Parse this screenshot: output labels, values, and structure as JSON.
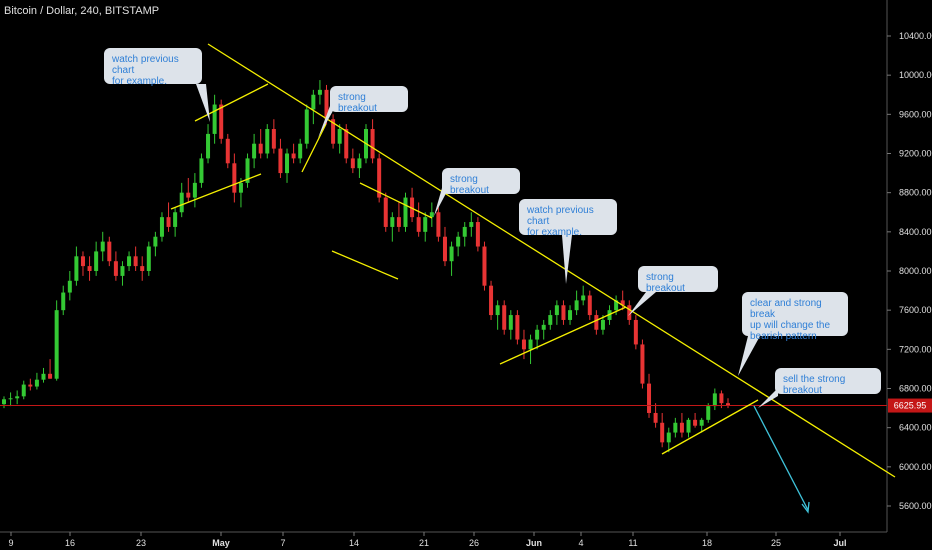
{
  "header": {
    "title": "Bitcoin / Dollar, 240, BITSTAMP"
  },
  "colors": {
    "background": "#000000",
    "up": "#34c934",
    "down": "#e83434",
    "trendline": "#f5f000",
    "priceline": "#c41717",
    "arrow": "#3fc2d9",
    "axis_text": "#e0e0e0",
    "callout_bg": "#dde3ea",
    "callout_text": "#2f7fd6"
  },
  "callouts": [
    {
      "text": "watch previous chart\nfor example."
    },
    {
      "text": "strong breakout"
    },
    {
      "text": "strong breakout"
    },
    {
      "text": "watch previous chart\nfor example."
    },
    {
      "text": "strong breakout"
    },
    {
      "text": "clear and strong break\nup will change the\nbearish pattern"
    },
    {
      "text": "sell the strong breakout"
    }
  ],
  "chart_data": {
    "type": "candlestick",
    "y_axis": {
      "ticks": [
        5600,
        6000,
        6400,
        6800,
        7200,
        7600,
        8000,
        8400,
        8800,
        9200,
        9600,
        10000,
        10400
      ],
      "labels": [
        "5600.00",
        "6000.00",
        "6400.00",
        "6800.00",
        "7200.00",
        "7600.00",
        "8000.00",
        "8400.00",
        "8800.00",
        "9200.00",
        "9600.00",
        "10000.00",
        "10400.00"
      ],
      "range": [
        5400,
        10700
      ]
    },
    "x_axis": {
      "labels": [
        "9",
        "16",
        "23",
        "May",
        "7",
        "14",
        "21",
        "26",
        "Jun",
        "4",
        "11",
        "18",
        "25",
        "Jul"
      ]
    },
    "last_price": 6625.95,
    "last_price_label": "6625.95",
    "trendlines": [
      {
        "from": [
          "Apr 30",
          10550
        ],
        "to": [
          "Jul 2",
          5880
        ],
        "role": "main descending resistance"
      },
      {
        "from": [
          "Apr 24",
          8670
        ],
        "to": [
          "May 3",
          8960
        ],
        "role": "rising wedge support"
      },
      {
        "from": [
          "Apr 28",
          9570
        ],
        "to": [
          "May 5",
          9960
        ],
        "role": "rising wedge resistance"
      },
      {
        "from": [
          "May 7",
          8990
        ],
        "to": [
          "May 10",
          9540
        ],
        "role": "breakout"
      },
      {
        "from": [
          "May 13",
          8830
        ],
        "to": [
          "May 21",
          8560
        ],
        "role": "falling channel top"
      },
      {
        "from": [
          "May 12",
          8150
        ],
        "to": [
          "May 18",
          7860
        ],
        "role": "falling channel bottom"
      },
      {
        "from": [
          "May 30",
          7060
        ],
        "to": [
          "Jun 9",
          7640
        ],
        "role": "rising support"
      },
      {
        "from": [
          "Jun 14",
          6150
        ],
        "to": [
          "Jun 21",
          6590
        ],
        "role": "rising support"
      }
    ],
    "candles_ohlc": [
      [
        6640,
        6720,
        6600,
        6690
      ],
      [
        6690,
        6760,
        6620,
        6700
      ],
      [
        6700,
        6780,
        6640,
        6720
      ],
      [
        6720,
        6880,
        6690,
        6840
      ],
      [
        6840,
        6900,
        6780,
        6820
      ],
      [
        6820,
        6960,
        6790,
        6890
      ],
      [
        6890,
        7010,
        6860,
        6950
      ],
      [
        6950,
        7100,
        6900,
        6900
      ],
      [
        6900,
        7700,
        6880,
        7600
      ],
      [
        7600,
        7850,
        7550,
        7780
      ],
      [
        7780,
        8000,
        7700,
        7900
      ],
      [
        7900,
        8250,
        7850,
        8150
      ],
      [
        8150,
        8200,
        7950,
        8050
      ],
      [
        8050,
        8150,
        7900,
        8000
      ],
      [
        8000,
        8300,
        7950,
        8200
      ],
      [
        8200,
        8400,
        8100,
        8300
      ],
      [
        8300,
        8350,
        8050,
        8100
      ],
      [
        8100,
        8200,
        7900,
        7950
      ],
      [
        7950,
        8100,
        7850,
        8050
      ],
      [
        8050,
        8200,
        8000,
        8150
      ],
      [
        8150,
        8250,
        8000,
        8050
      ],
      [
        8050,
        8150,
        7900,
        8000
      ],
      [
        8000,
        8300,
        7950,
        8250
      ],
      [
        8250,
        8400,
        8150,
        8350
      ],
      [
        8350,
        8600,
        8300,
        8550
      ],
      [
        8550,
        8700,
        8400,
        8450
      ],
      [
        8450,
        8650,
        8350,
        8600
      ],
      [
        8600,
        8900,
        8550,
        8800
      ],
      [
        8800,
        8950,
        8700,
        8750
      ],
      [
        8750,
        9000,
        8650,
        8900
      ],
      [
        8900,
        9200,
        8850,
        9150
      ],
      [
        9150,
        9500,
        9100,
        9400
      ],
      [
        9400,
        9800,
        9300,
        9700
      ],
      [
        9700,
        9750,
        9300,
        9350
      ],
      [
        9350,
        9400,
        9050,
        9100
      ],
      [
        9100,
        9200,
        8700,
        8800
      ],
      [
        8800,
        8950,
        8650,
        8900
      ],
      [
        8900,
        9200,
        8850,
        9150
      ],
      [
        9150,
        9400,
        9050,
        9300
      ],
      [
        9300,
        9450,
        9150,
        9200
      ],
      [
        9200,
        9500,
        9150,
        9450
      ],
      [
        9450,
        9550,
        9200,
        9250
      ],
      [
        9250,
        9350,
        8950,
        9000
      ],
      [
        9000,
        9250,
        8900,
        9200
      ],
      [
        9200,
        9300,
        9100,
        9150
      ],
      [
        9150,
        9350,
        9100,
        9300
      ],
      [
        9300,
        9700,
        9250,
        9650
      ],
      [
        9650,
        9850,
        9500,
        9800
      ],
      [
        9800,
        9950,
        9700,
        9850
      ],
      [
        9850,
        9900,
        9500,
        9550
      ],
      [
        9550,
        9600,
        9250,
        9300
      ],
      [
        9300,
        9500,
        9200,
        9450
      ],
      [
        9450,
        9500,
        9100,
        9150
      ],
      [
        9150,
        9250,
        9000,
        9050
      ],
      [
        9050,
        9200,
        8950,
        9150
      ],
      [
        9150,
        9500,
        9100,
        9450
      ],
      [
        9450,
        9550,
        9100,
        9150
      ],
      [
        9150,
        9200,
        8700,
        8750
      ],
      [
        8750,
        8800,
        8400,
        8450
      ],
      [
        8450,
        8600,
        8300,
        8550
      ],
      [
        8550,
        8700,
        8400,
        8450
      ],
      [
        8450,
        8800,
        8400,
        8750
      ],
      [
        8750,
        8850,
        8500,
        8550
      ],
      [
        8550,
        8700,
        8350,
        8400
      ],
      [
        8400,
        8600,
        8300,
        8550
      ],
      [
        8550,
        8700,
        8450,
        8600
      ],
      [
        8600,
        8650,
        8300,
        8350
      ],
      [
        8350,
        8450,
        8050,
        8100
      ],
      [
        8100,
        8300,
        7950,
        8250
      ],
      [
        8250,
        8400,
        8150,
        8350
      ],
      [
        8350,
        8500,
        8250,
        8450
      ],
      [
        8450,
        8600,
        8350,
        8500
      ],
      [
        8500,
        8550,
        8200,
        8250
      ],
      [
        8250,
        8300,
        7800,
        7850
      ],
      [
        7850,
        7900,
        7500,
        7550
      ],
      [
        7550,
        7700,
        7400,
        7650
      ],
      [
        7650,
        7700,
        7350,
        7400
      ],
      [
        7400,
        7600,
        7300,
        7550
      ],
      [
        7550,
        7600,
        7250,
        7300
      ],
      [
        7300,
        7400,
        7100,
        7200
      ],
      [
        7200,
        7350,
        7050,
        7300
      ],
      [
        7300,
        7450,
        7200,
        7400
      ],
      [
        7400,
        7500,
        7300,
        7450
      ],
      [
        7450,
        7600,
        7400,
        7550
      ],
      [
        7550,
        7700,
        7450,
        7650
      ],
      [
        7650,
        7700,
        7450,
        7500
      ],
      [
        7500,
        7650,
        7450,
        7600
      ],
      [
        7600,
        7800,
        7550,
        7700
      ],
      [
        7700,
        7850,
        7650,
        7750
      ],
      [
        7750,
        7800,
        7500,
        7550
      ],
      [
        7550,
        7600,
        7350,
        7400
      ],
      [
        7400,
        7550,
        7350,
        7500
      ],
      [
        7500,
        7650,
        7450,
        7600
      ],
      [
        7600,
        7750,
        7550,
        7700
      ],
      [
        7700,
        7800,
        7600,
        7650
      ],
      [
        7650,
        7700,
        7450,
        7500
      ],
      [
        7500,
        7550,
        7200,
        7250
      ],
      [
        7250,
        7300,
        6800,
        6850
      ],
      [
        6850,
        6950,
        6500,
        6550
      ],
      [
        6550,
        6650,
        6400,
        6450
      ],
      [
        6450,
        6550,
        6200,
        6250
      ],
      [
        6250,
        6400,
        6150,
        6350
      ],
      [
        6350,
        6500,
        6300,
        6450
      ],
      [
        6450,
        6550,
        6300,
        6350
      ],
      [
        6350,
        6500,
        6300,
        6480
      ],
      [
        6480,
        6550,
        6400,
        6420
      ],
      [
        6420,
        6500,
        6350,
        6480
      ],
      [
        6480,
        6650,
        6450,
        6620
      ],
      [
        6620,
        6800,
        6580,
        6750
      ],
      [
        6750,
        6780,
        6600,
        6650
      ],
      [
        6650,
        6700,
        6600,
        6626
      ]
    ]
  }
}
